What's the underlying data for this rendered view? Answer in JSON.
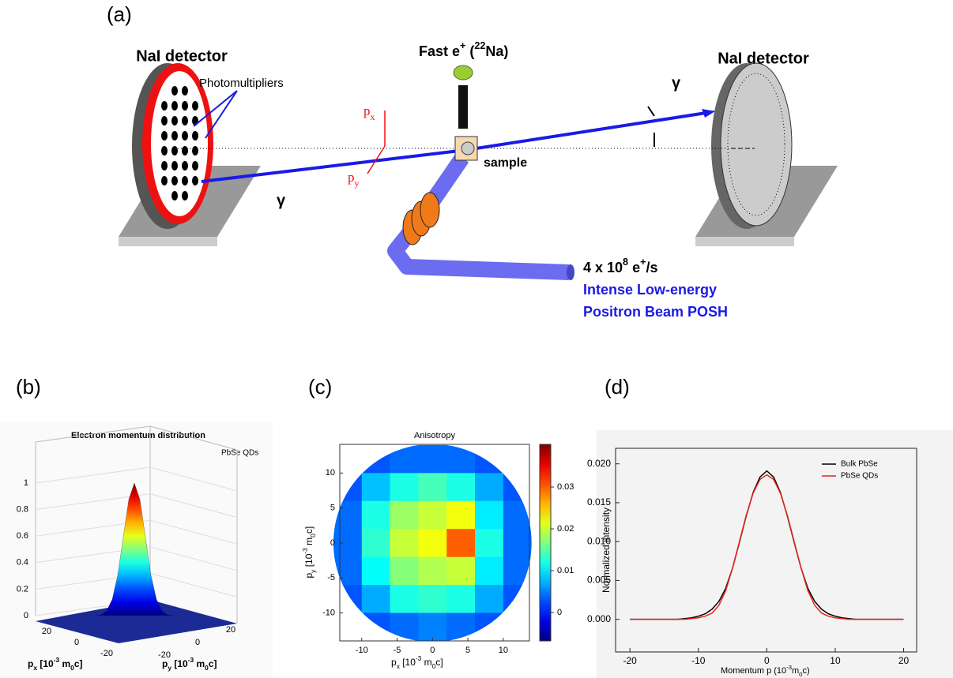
{
  "panel_a": {
    "label": "(a)",
    "left_detector": "NaI detector",
    "right_detector": "NaI detector",
    "photomultipliers": "Photomultipliers",
    "source": [
      "Fast e",
      "+",
      " (",
      "22",
      "Na)"
    ],
    "gamma_left": "γ",
    "gamma_right": "γ",
    "px": [
      "p",
      "x"
    ],
    "py": [
      "p",
      "y"
    ],
    "sample": "sample",
    "beam_rate": [
      "4 x 10",
      "8",
      " e",
      "+",
      "/s"
    ],
    "beam_line1": "Intense Low-energy",
    "beam_line2": "Positron Beam POSH"
  },
  "chart_data": [
    {
      "type": "surface3d",
      "panel_label": "(b)",
      "title": "Electron momentum distribution",
      "legend": "PbSe QDs",
      "x": [
        -20,
        -18,
        -16,
        -14,
        -12,
        -10,
        -8,
        -6,
        -4,
        -2,
        0,
        2,
        4,
        6,
        8,
        10,
        12,
        14,
        16,
        18,
        20
      ],
      "values": [
        0,
        0,
        0,
        0.002,
        0.009,
        0.037,
        0.122,
        0.306,
        0.591,
        0.877,
        1,
        0.877,
        0.591,
        0.306,
        0.122,
        0.037,
        0.009,
        0.002,
        0,
        0,
        0
      ],
      "color": "jet",
      "zlim": [
        0,
        1
      ],
      "zticks": [
        0,
        0.2,
        0.4,
        0.6,
        0.8,
        1
      ],
      "xticks": [
        -20,
        0,
        20
      ],
      "yticks": [
        -20,
        0,
        20
      ],
      "xlabel": [
        "p",
        "x",
        " [10",
        "-3",
        " m",
        "0",
        "c]"
      ],
      "ylabel": [
        "p",
        "y",
        " [10",
        "-3",
        " m",
        "0",
        "c]"
      ],
      "grid": true
    },
    {
      "type": "heatmap",
      "panel_label": "(c)",
      "title": "Anisotropy",
      "colormap": "jet",
      "x": [
        -12,
        -8,
        -4,
        0,
        4,
        8,
        12
      ],
      "y": [
        12,
        8,
        4,
        0,
        -4,
        -8,
        -12
      ],
      "z": [
        [
          null,
          0.003,
          0.004,
          0.004,
          0.004,
          0.003,
          null
        ],
        [
          0.003,
          0.008,
          0.012,
          0.014,
          0.012,
          0.007,
          0.003
        ],
        [
          0.004,
          0.012,
          0.018,
          0.02,
          0.022,
          0.01,
          0.004
        ],
        [
          0.004,
          0.013,
          0.02,
          0.022,
          0.03,
          0.012,
          0.004
        ],
        [
          0.004,
          0.011,
          0.017,
          0.019,
          0.02,
          0.01,
          0.004
        ],
        [
          0.003,
          0.007,
          0.012,
          0.013,
          0.012,
          0.007,
          0.003
        ],
        [
          null,
          0.003,
          0.004,
          0.005,
          0.004,
          0.003,
          null
        ]
      ],
      "xlim": [
        -13.1,
        13.7
      ],
      "ylim": [
        -14,
        14.1
      ],
      "xticks": [
        -10,
        -5,
        0,
        5,
        10
      ],
      "yticks": [
        -10,
        -5,
        0,
        5,
        10
      ],
      "zlim": [
        -0.0068,
        0.0402
      ],
      "zticks": [
        0,
        0.01,
        0.02,
        0.03
      ],
      "xlabel": [
        "p",
        "x",
        " [10",
        "-3",
        " m",
        "0",
        "c]"
      ],
      "ylabel": [
        "p",
        "y",
        " [10",
        "-3",
        " m",
        "0",
        "c]"
      ]
    },
    {
      "type": "line",
      "panel_label": "(d)",
      "x": [
        -20,
        -19,
        -18,
        -17,
        -16,
        -15,
        -14,
        -13,
        -12,
        -11,
        -10,
        -9,
        -8,
        -7,
        -6,
        -5,
        -4,
        -3,
        -2,
        -1,
        0,
        1,
        2,
        3,
        4,
        5,
        6,
        7,
        8,
        9,
        10,
        11,
        12,
        13,
        14,
        15,
        16,
        17,
        18,
        19,
        20
      ],
      "series": [
        {
          "name": "Bulk PbSe",
          "color": "#000000",
          "values": [
            0,
            0,
            0,
            0,
            0,
            0,
            0,
            0,
            0.0001,
            0.0002,
            0.0004,
            0.0007,
            0.0013,
            0.0023,
            0.004,
            0.0066,
            0.0099,
            0.0133,
            0.0163,
            0.0183,
            0.0191,
            0.0183,
            0.0163,
            0.0133,
            0.0099,
            0.0066,
            0.004,
            0.0023,
            0.0013,
            0.0007,
            0.0004,
            0.0002,
            0.0001,
            0,
            0,
            0,
            0,
            0,
            0,
            0,
            0
          ]
        },
        {
          "name": "PbSe QDs",
          "color": "#e8231c",
          "values": [
            0,
            0,
            0,
            0,
            0,
            0,
            0,
            0,
            0,
            0.0001,
            0.0002,
            0.0004,
            0.0008,
            0.0018,
            0.0037,
            0.0066,
            0.01,
            0.0134,
            0.0162,
            0.018,
            0.0186,
            0.018,
            0.0162,
            0.0134,
            0.01,
            0.0066,
            0.0037,
            0.0018,
            0.0008,
            0.0004,
            0.0002,
            0.0001,
            0,
            0,
            0,
            0,
            0,
            0,
            0,
            0,
            0
          ]
        }
      ],
      "xlim": [
        -22.1,
        21.9
      ],
      "ylim": [
        -0.0042,
        0.022
      ],
      "xticks": [
        -20,
        -10,
        0,
        10,
        20
      ],
      "yticks": [
        {
          "value": 0,
          "label": "0.000"
        },
        {
          "value": 0.005,
          "label": "0.005"
        },
        {
          "value": 0.01,
          "label": "0.010"
        },
        {
          "value": 0.015,
          "label": "0.015"
        },
        {
          "value": 0.02,
          "label": "0.020"
        }
      ],
      "xlabel": [
        "Momentum p (10",
        "-3",
        "m",
        "0",
        "c)"
      ],
      "ylabel": "Normalized intensity",
      "legend": "upper right"
    }
  ]
}
